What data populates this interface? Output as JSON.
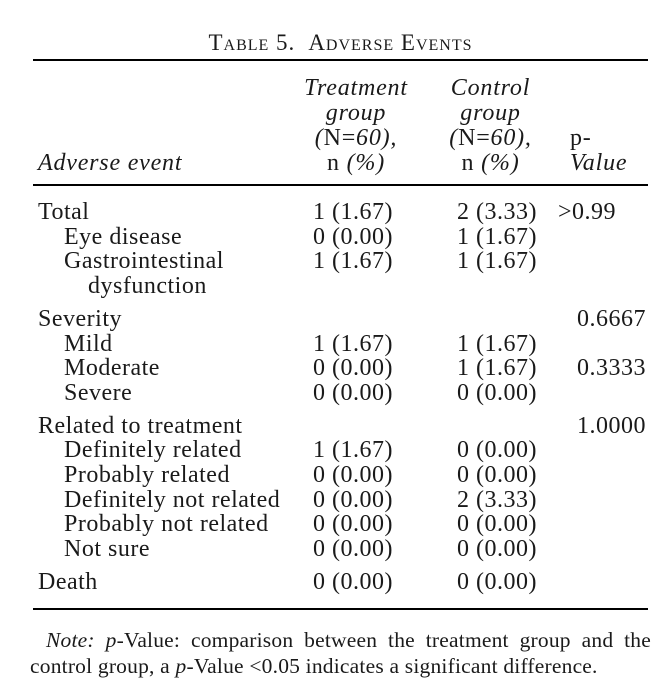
{
  "title": {
    "label": "Table 5.",
    "text": "Adverse Events"
  },
  "table": {
    "header": {
      "adverse_event": "Adverse event",
      "treatment_lines": [
        [
          {
            "text": "Treatment",
            "italic": true
          }
        ],
        [
          {
            "text": "group",
            "italic": true
          }
        ],
        [
          {
            "text": "(",
            "italic": true
          },
          {
            "text": "N=",
            "italic": false
          },
          {
            "text": "60),",
            "italic": true
          }
        ],
        [
          {
            "text": "n ",
            "italic": false
          },
          {
            "text": "(%)",
            "italic": true
          }
        ]
      ],
      "control_lines": [
        [
          {
            "text": "Control",
            "italic": true
          }
        ],
        [
          {
            "text": "group",
            "italic": true
          }
        ],
        [
          {
            "text": "(",
            "italic": true
          },
          {
            "text": "N=",
            "italic": false
          },
          {
            "text": "60),",
            "italic": true
          }
        ],
        [
          {
            "text": "n ",
            "italic": false
          },
          {
            "text": "(%)",
            "italic": true
          }
        ]
      ],
      "p_value": [
        {
          "text": "p-",
          "italic": false
        },
        {
          "text": "Value",
          "italic": true
        }
      ]
    },
    "rows": [
      {
        "label": "Total",
        "label2": "",
        "indent": 0,
        "treatment": "1 (1.67)",
        "control": "2 (3.33)",
        "p": ">0.99",
        "gap": false
      },
      {
        "label": "Eye disease",
        "label2": "",
        "indent": 1,
        "treatment": "0 (0.00)",
        "control": "1 (1.67)",
        "p": "",
        "gap": false
      },
      {
        "label": "Gastrointestinal",
        "label2": "dysfunction",
        "indent": 1,
        "treatment": "1 (1.67)",
        "control": "1 (1.67)",
        "p": "",
        "gap": false
      },
      {
        "label": "Severity",
        "label2": "",
        "indent": 0,
        "treatment": "",
        "control": "",
        "p": "0.6667",
        "gap": true
      },
      {
        "label": "Mild",
        "label2": "",
        "indent": 1,
        "treatment": "1 (1.67)",
        "control": "1 (1.67)",
        "p": "",
        "gap": false
      },
      {
        "label": "Moderate",
        "label2": "",
        "indent": 1,
        "treatment": "0 (0.00)",
        "control": "1 (1.67)",
        "p": "0.3333",
        "gap": false
      },
      {
        "label": "Severe",
        "label2": "",
        "indent": 1,
        "treatment": "0 (0.00)",
        "control": "0 (0.00)",
        "p": "",
        "gap": false
      },
      {
        "label": "Related to treatment",
        "label2": "",
        "indent": 0,
        "treatment": "",
        "control": "",
        "p": "1.0000",
        "gap": true
      },
      {
        "label": "Definitely related",
        "label2": "",
        "indent": 1,
        "treatment": "1 (1.67)",
        "control": "0 (0.00)",
        "p": "",
        "gap": false
      },
      {
        "label": "Probably related",
        "label2": "",
        "indent": 1,
        "treatment": "0 (0.00)",
        "control": "0 (0.00)",
        "p": "",
        "gap": false
      },
      {
        "label": "Definitely not related",
        "label2": "",
        "indent": 1,
        "treatment": "0 (0.00)",
        "control": "2 (3.33)",
        "p": "",
        "gap": false
      },
      {
        "label": "Probably not related",
        "label2": "",
        "indent": 1,
        "treatment": "0 (0.00)",
        "control": "0 (0.00)",
        "p": "",
        "gap": false
      },
      {
        "label": "Not sure",
        "label2": "",
        "indent": 1,
        "treatment": "0 (0.00)",
        "control": "0 (0.00)",
        "p": "",
        "gap": false
      },
      {
        "label": "Death",
        "label2": "",
        "indent": 0,
        "treatment": "0 (0.00)",
        "control": "0 (0.00)",
        "p": "",
        "gap": true
      }
    ]
  },
  "note": {
    "segments": [
      {
        "text": "Note:",
        "italic": true
      },
      {
        "text": " ",
        "italic": false
      },
      {
        "text": "p",
        "italic": true
      },
      {
        "text": "-Value: comparison between the treatment group and the control group, a ",
        "italic": false
      },
      {
        "text": "p",
        "italic": true
      },
      {
        "text": "-Value <0.05 indicates a significant difference.",
        "italic": false
      }
    ]
  },
  "colors": {
    "text": "#1a1a1a",
    "rule": "#000000",
    "background": "#ffffff"
  }
}
